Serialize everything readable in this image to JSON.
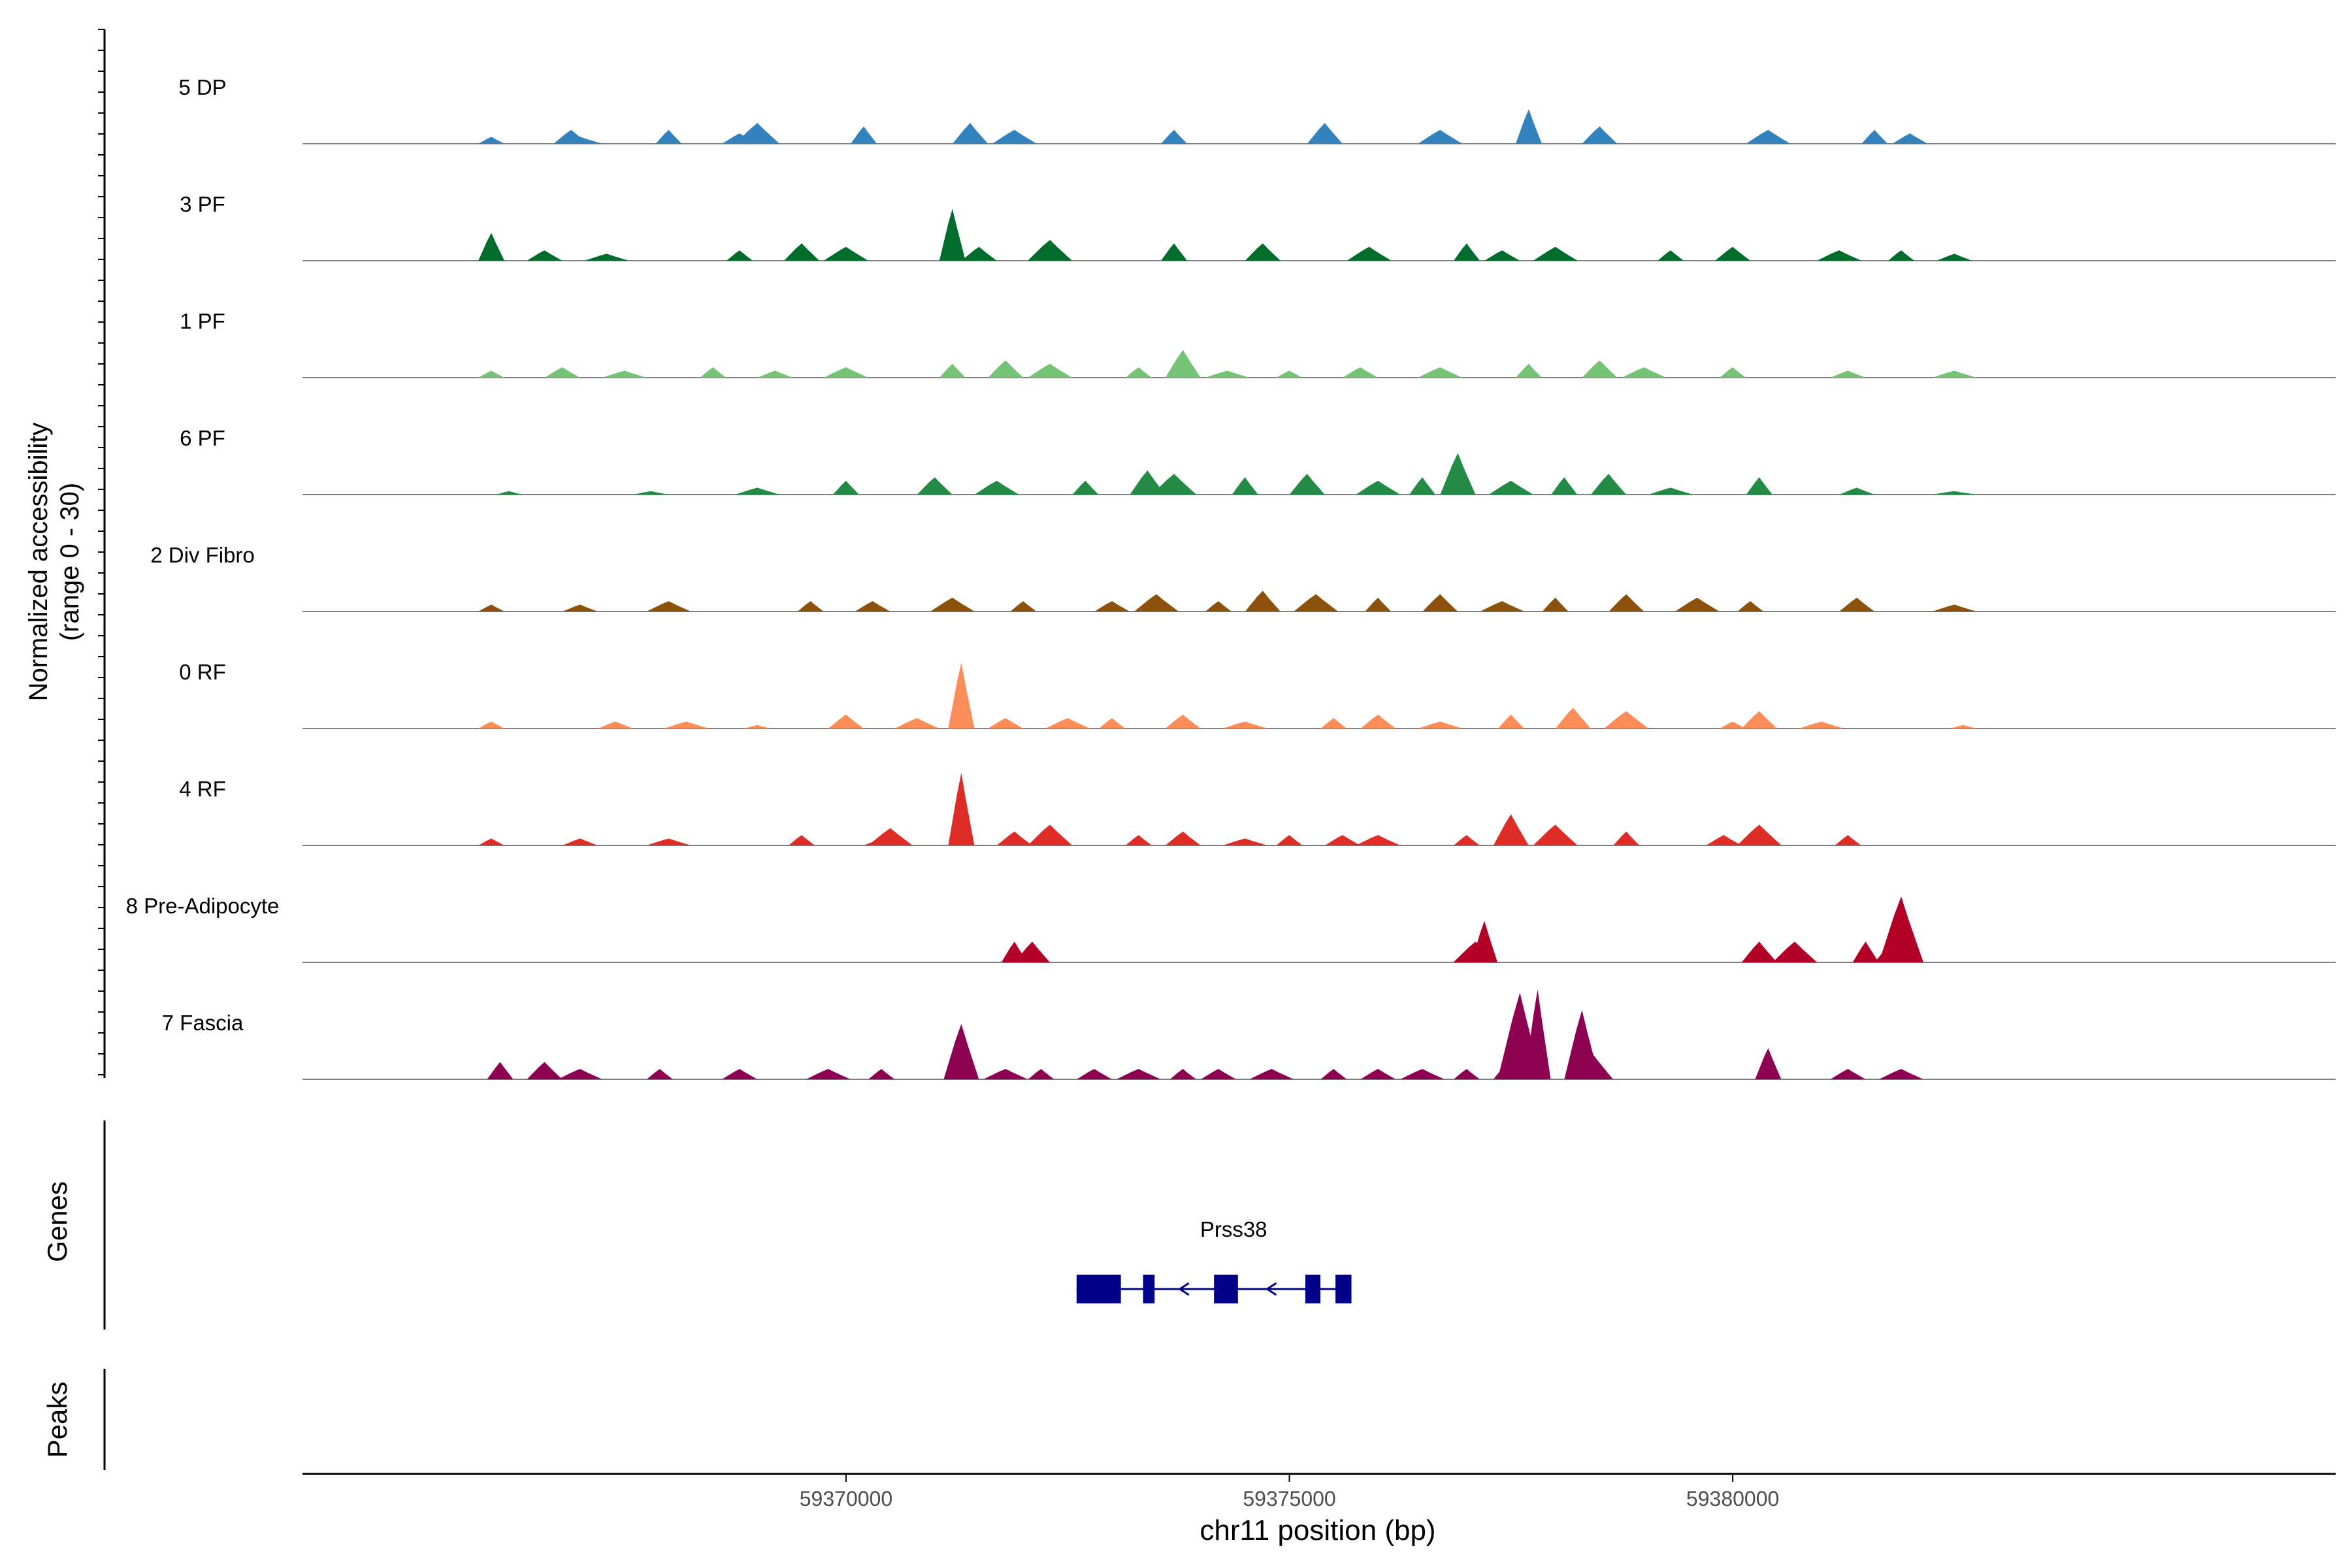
{
  "chart_data": {
    "type": "area",
    "title": "",
    "xlabel": "chr11 position (bp)",
    "ylabel": [
      "Normalized accessibility",
      "(range 0 - 30)"
    ],
    "xlim": [
      59363870,
      59386800
    ],
    "ylim": [
      0,
      30
    ],
    "x_ticks": [
      59370000,
      59375000,
      59380000
    ],
    "x_tick_labels": [
      "59370000",
      "59375000",
      "59380000"
    ],
    "tracks": [
      {
        "name": "5 DP",
        "color": "#3182bd",
        "x": [
          59366000,
          59366900,
          59367000,
          59368000,
          59368800,
          59369000,
          59370200,
          59371400,
          59371900,
          59373700,
          59375400,
          59376700,
          59377700,
          59378500,
          59380400,
          59381600,
          59382000
        ],
        "y": [
          2,
          4,
          2,
          4,
          3,
          6,
          5,
          6,
          4,
          4,
          6,
          4,
          10,
          5,
          4,
          4,
          3
        ]
      },
      {
        "name": "3 PF",
        "color": "#006d2c",
        "x": [
          59366000,
          59366600,
          59367300,
          59368800,
          59369500,
          59370000,
          59371200,
          59371500,
          59372300,
          59373700,
          59374700,
          59375900,
          59377000,
          59377400,
          59378000,
          59379300,
          59380000,
          59381200,
          59381900,
          59382500
        ],
        "y": [
          8,
          3,
          2,
          3,
          5,
          4,
          15,
          4,
          6,
          5,
          5,
          4,
          5,
          3,
          4,
          3,
          4,
          3,
          3,
          2
        ]
      },
      {
        "name": "1 PF",
        "color": "#74c476",
        "x": [
          59366000,
          59366800,
          59367500,
          59368500,
          59369200,
          59370000,
          59371200,
          59371800,
          59372300,
          59373300,
          59373800,
          59374300,
          59375000,
          59375800,
          59376700,
          59377700,
          59378500,
          59379000,
          59380000,
          59381300,
          59382500
        ],
        "y": [
          2,
          3,
          2,
          3,
          2,
          3,
          4,
          5,
          4,
          3,
          8,
          2,
          2,
          3,
          3,
          4,
          5,
          3,
          3,
          2,
          2
        ]
      },
      {
        "name": "6 PF",
        "color": "#238b45",
        "x": [
          59366200,
          59367800,
          59369000,
          59370000,
          59371000,
          59371700,
          59372700,
          59373400,
          59373700,
          59374500,
          59375200,
          59376000,
          59376500,
          59376900,
          59377500,
          59378100,
          59378600,
          59379300,
          59380300,
          59381400,
          59382500
        ],
        "y": [
          1,
          1,
          2,
          4,
          5,
          4,
          4,
          7,
          6,
          5,
          6,
          4,
          5,
          12,
          4,
          5,
          6,
          2,
          5,
          2,
          1
        ]
      },
      {
        "name": "2 Div Fibro",
        "color": "#8c510a",
        "x": [
          59366000,
          59367000,
          59368000,
          59369600,
          59370300,
          59371200,
          59372000,
          59373000,
          59373500,
          59374200,
          59374700,
          59375300,
          59376000,
          59376700,
          59377400,
          59378000,
          59378800,
          59379600,
          59380200,
          59381400,
          59382500
        ],
        "y": [
          2,
          2,
          3,
          3,
          3,
          4,
          3,
          3,
          5,
          3,
          6,
          5,
          4,
          5,
          3,
          4,
          5,
          4,
          3,
          4,
          2
        ]
      },
      {
        "name": "0 RF",
        "color": "#fc8d59",
        "x": [
          59366000,
          59367400,
          59368200,
          59369000,
          59370000,
          59370800,
          59371300,
          59371800,
          59372500,
          59373000,
          59373800,
          59374500,
          59375500,
          59376000,
          59376700,
          59377500,
          59378200,
          59378800,
          59380000,
          59380300,
          59381000,
          59382600
        ],
        "y": [
          2,
          2,
          2,
          1,
          4,
          3,
          19,
          3,
          3,
          3,
          4,
          2,
          3,
          4,
          2,
          4,
          6,
          5,
          2,
          5,
          2,
          1
        ]
      },
      {
        "name": "4 RF",
        "color": "#de2d26",
        "x": [
          59366000,
          59367000,
          59368000,
          59369500,
          59370400,
          59370500,
          59371300,
          59371900,
          59372300,
          59373300,
          59373800,
          59374500,
          59375000,
          59375600,
          59376000,
          59377000,
          59377500,
          59378000,
          59378800,
          59379900,
          59380300,
          59381300
        ],
        "y": [
          2,
          2,
          2,
          3,
          2,
          5,
          21,
          4,
          6,
          3,
          4,
          2,
          3,
          3,
          3,
          3,
          9,
          6,
          4,
          3,
          6,
          3
        ]
      },
      {
        "name": "8 Pre-Adipocyte",
        "color": "#b30026",
        "x": [
          59371900,
          59372100,
          59377100,
          59377200,
          59380300,
          59380700,
          59381500,
          59381800,
          59381900
        ],
        "y": [
          6,
          6,
          6,
          12,
          6,
          6,
          6,
          6,
          19
        ]
      },
      {
        "name": "7 Fascia",
        "color": "#8e0152",
        "x": [
          59366100,
          59366600,
          59367000,
          59367900,
          59368800,
          59369800,
          59370400,
          59371300,
          59371800,
          59372200,
          59372800,
          59373300,
          59373800,
          59374200,
          59374800,
          59375500,
          59376000,
          59376500,
          59377000,
          59377500,
          59377600,
          59377800,
          59378300,
          59378400,
          59380400,
          59381300,
          59381900
        ],
        "y": [
          5,
          5,
          3,
          3,
          3,
          3,
          3,
          16,
          3,
          3,
          3,
          3,
          3,
          3,
          3,
          3,
          3,
          3,
          3,
          6,
          25,
          26,
          20,
          8,
          9,
          3,
          3
        ]
      }
    ],
    "genes": [
      {
        "name": "Prss38",
        "start": 59372600,
        "end": 59375700,
        "strand": "-",
        "exons": [
          [
            59372600,
            59373100
          ],
          [
            59373350,
            59373480
          ],
          [
            59374150,
            59374420
          ],
          [
            59375180,
            59375350
          ],
          [
            59375520,
            59375700
          ]
        ]
      }
    ],
    "side_labels": [
      "Genes",
      "Peaks"
    ],
    "peaks": []
  }
}
